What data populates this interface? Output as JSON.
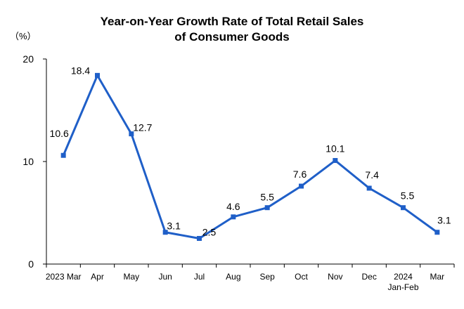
{
  "chart_data": {
    "type": "line",
    "title_lines": [
      "Year-on-Year Growth Rate of Total Retail Sales",
      "of Consumer Goods"
    ],
    "ylabel": "（%）",
    "ylim": [
      0,
      20
    ],
    "yticks": [
      "0",
      "10",
      "20"
    ],
    "yticks_values": [
      0,
      10,
      20
    ],
    "categories": [
      [
        "2023 Mar"
      ],
      [
        "Apr"
      ],
      [
        "May"
      ],
      [
        "Jun"
      ],
      [
        "Jul"
      ],
      [
        "Aug"
      ],
      [
        "Sep"
      ],
      [
        "Oct"
      ],
      [
        "Nov"
      ],
      [
        "Dec"
      ],
      [
        "2024",
        "Jan-Feb"
      ],
      [
        "Mar"
      ]
    ],
    "values": [
      10.6,
      18.4,
      12.7,
      3.1,
      2.5,
      4.6,
      5.5,
      7.6,
      10.1,
      7.4,
      5.5,
      3.1
    ],
    "data_labels": [
      "10.6",
      "18.4",
      "12.7",
      "3.1",
      "2.5",
      "4.6",
      "5.5",
      "7.6",
      "10.1",
      "7.4",
      "5.5",
      "3.1"
    ],
    "line_color": "#1f5fc8",
    "grid": false
  }
}
